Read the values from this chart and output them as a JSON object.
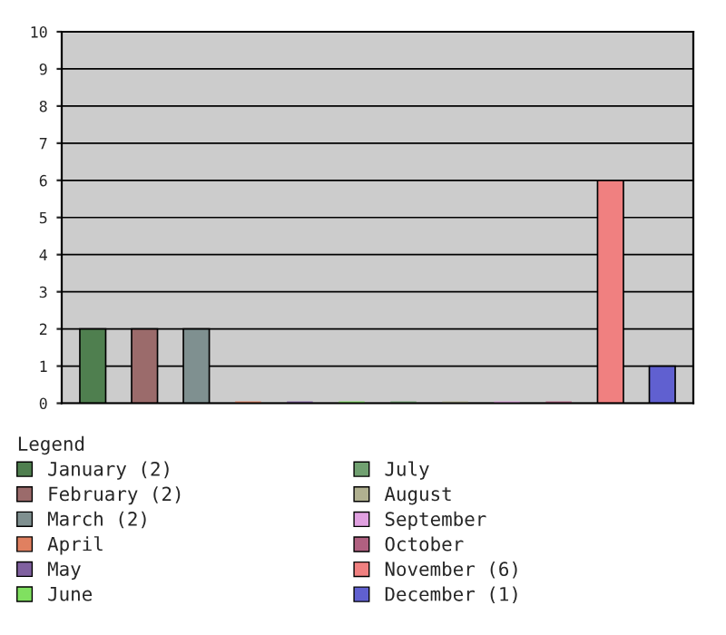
{
  "chart_data": {
    "type": "bar",
    "categories": [
      null,
      null,
      null,
      null,
      null,
      null,
      null,
      null,
      null,
      null,
      null,
      null
    ],
    "series": [
      {
        "name": "January (2)",
        "color": "#4f7f4f",
        "values": [
          2,
          null,
          null,
          null,
          null,
          null,
          null,
          null,
          null,
          null,
          null,
          null
        ]
      },
      {
        "name": "February (2)",
        "color": "#9b6b6b",
        "values": [
          null,
          2,
          null,
          null,
          null,
          null,
          null,
          null,
          null,
          null,
          null,
          null
        ]
      },
      {
        "name": "March (2)",
        "color": "#7f9090",
        "values": [
          null,
          null,
          2,
          null,
          null,
          null,
          null,
          null,
          null,
          null,
          null,
          null
        ]
      },
      {
        "name": "April",
        "color": "#e08060",
        "values": [
          null,
          null,
          null,
          0,
          null,
          null,
          null,
          null,
          null,
          null,
          null,
          null
        ]
      },
      {
        "name": "May",
        "color": "#8060a0",
        "values": [
          null,
          null,
          null,
          null,
          0,
          null,
          null,
          null,
          null,
          null,
          null,
          null
        ]
      },
      {
        "name": "June",
        "color": "#80e060",
        "values": [
          null,
          null,
          null,
          null,
          null,
          0,
          null,
          null,
          null,
          null,
          null,
          null
        ]
      },
      {
        "name": "July",
        "color": "#70a070",
        "values": [
          null,
          null,
          null,
          null,
          null,
          null,
          0,
          null,
          null,
          null,
          null,
          null
        ]
      },
      {
        "name": "August",
        "color": "#b0b090",
        "values": [
          null,
          null,
          null,
          null,
          null,
          null,
          null,
          0,
          null,
          null,
          null,
          null
        ]
      },
      {
        "name": "September",
        "color": "#e0a0e0",
        "values": [
          null,
          null,
          null,
          null,
          null,
          null,
          null,
          null,
          0,
          null,
          null,
          null
        ]
      },
      {
        "name": "October",
        "color": "#b06080",
        "values": [
          null,
          null,
          null,
          null,
          null,
          null,
          null,
          null,
          null,
          0,
          null,
          null
        ]
      },
      {
        "name": "November (6)",
        "color": "#f08080",
        "values": [
          null,
          null,
          null,
          null,
          null,
          null,
          null,
          null,
          null,
          null,
          6,
          null
        ]
      },
      {
        "name": "December (1)",
        "color": "#6060d0",
        "values": [
          null,
          null,
          null,
          null,
          null,
          null,
          null,
          null,
          null,
          null,
          null,
          1
        ]
      }
    ],
    "ylim": [
      0,
      10
    ],
    "yticks": [
      0,
      1,
      2,
      3,
      4,
      5,
      6,
      7,
      8,
      9,
      10
    ],
    "grid": "y",
    "legend": "bottom",
    "legend_title": "Legend"
  }
}
